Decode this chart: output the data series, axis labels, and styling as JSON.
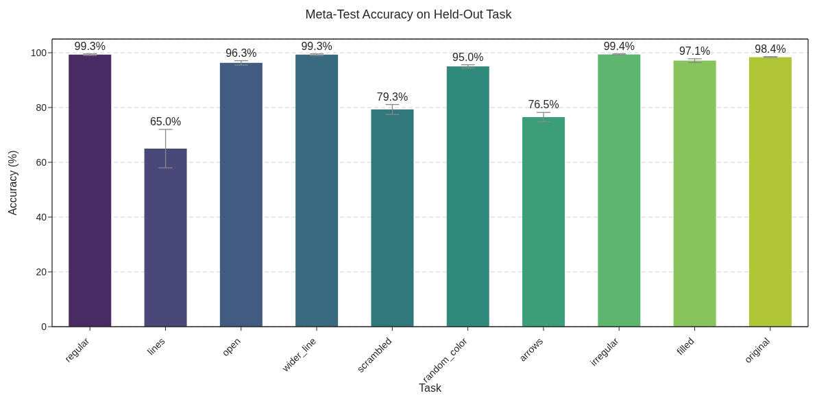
{
  "chart_data": {
    "type": "bar",
    "title": "Meta-Test Accuracy on Held-Out Task",
    "xlabel": "Task",
    "ylabel": "Accuracy (%)",
    "categories": [
      "regular",
      "lines",
      "open",
      "wider_line",
      "scrambled",
      "random_color",
      "arrows",
      "irregular",
      "filled",
      "original"
    ],
    "values": [
      99.3,
      65.0,
      96.3,
      99.3,
      79.3,
      95.0,
      76.5,
      99.4,
      97.1,
      98.4
    ],
    "errors": [
      0.3,
      7.0,
      0.8,
      0.3,
      1.8,
      0.6,
      1.7,
      0.2,
      0.7,
      0.2
    ],
    "colors": [
      "#482b63",
      "#4a4779",
      "#425b81",
      "#3a6a80",
      "#31787d",
      "#2f8a7c",
      "#3c9e78",
      "#5eb56f",
      "#88c35c",
      "#b1c637"
    ],
    "value_labels": [
      "99.3%",
      "65.0%",
      "96.3%",
      "99.3%",
      "79.3%",
      "95.0%",
      "76.5%",
      "99.4%",
      "97.1%",
      "98.4%"
    ],
    "ylim": [
      0,
      105
    ],
    "yticks": [
      0,
      20,
      40,
      60,
      80,
      100
    ],
    "grid": "y"
  }
}
